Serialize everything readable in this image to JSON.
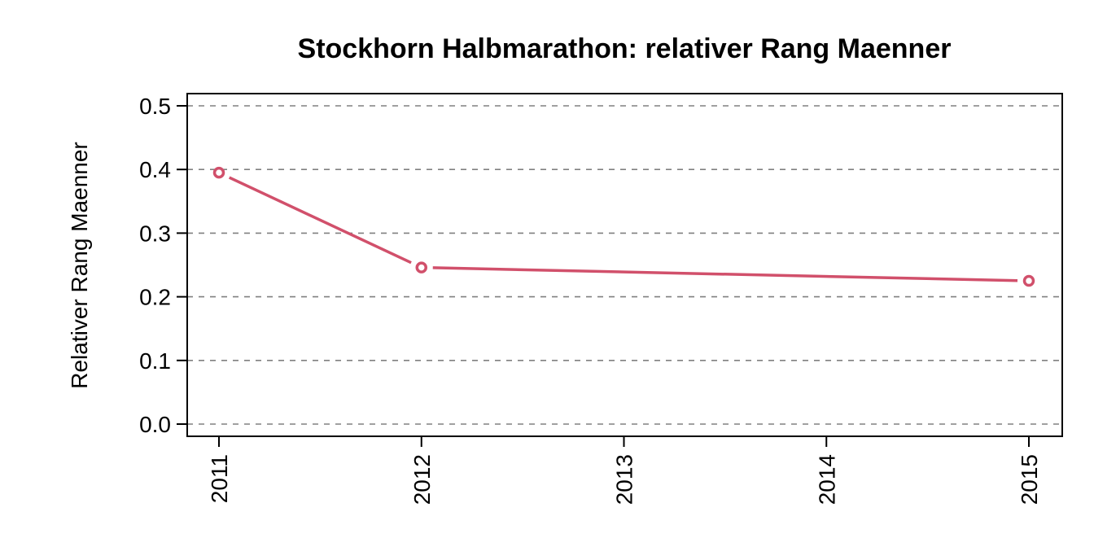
{
  "chart_data": {
    "type": "line",
    "title": "Stockhorn Halbmarathon: relativer Rang Maenner",
    "xlabel": "",
    "ylabel": "Relativer Rang Maenner",
    "x": [
      2011,
      2012,
      2013,
      2014,
      2015
    ],
    "x_tick_labels": [
      "2011",
      "2012",
      "2013",
      "2014",
      "2015"
    ],
    "y_ticks": [
      0.0,
      0.1,
      0.2,
      0.3,
      0.4,
      0.5
    ],
    "y_tick_labels": [
      "0.0",
      "0.1",
      "0.2",
      "0.3",
      "0.4",
      "0.5"
    ],
    "ylim": [
      0,
      0.5
    ],
    "xlim": [
      2011,
      2015
    ],
    "grid": "horizontal-dashed",
    "series": [
      {
        "color": "#d1506b",
        "points": [
          {
            "x": 2011,
            "y": 0.395
          },
          {
            "x": 2012,
            "y": 0.246
          },
          {
            "x": 2015,
            "y": 0.225
          }
        ]
      }
    ]
  }
}
